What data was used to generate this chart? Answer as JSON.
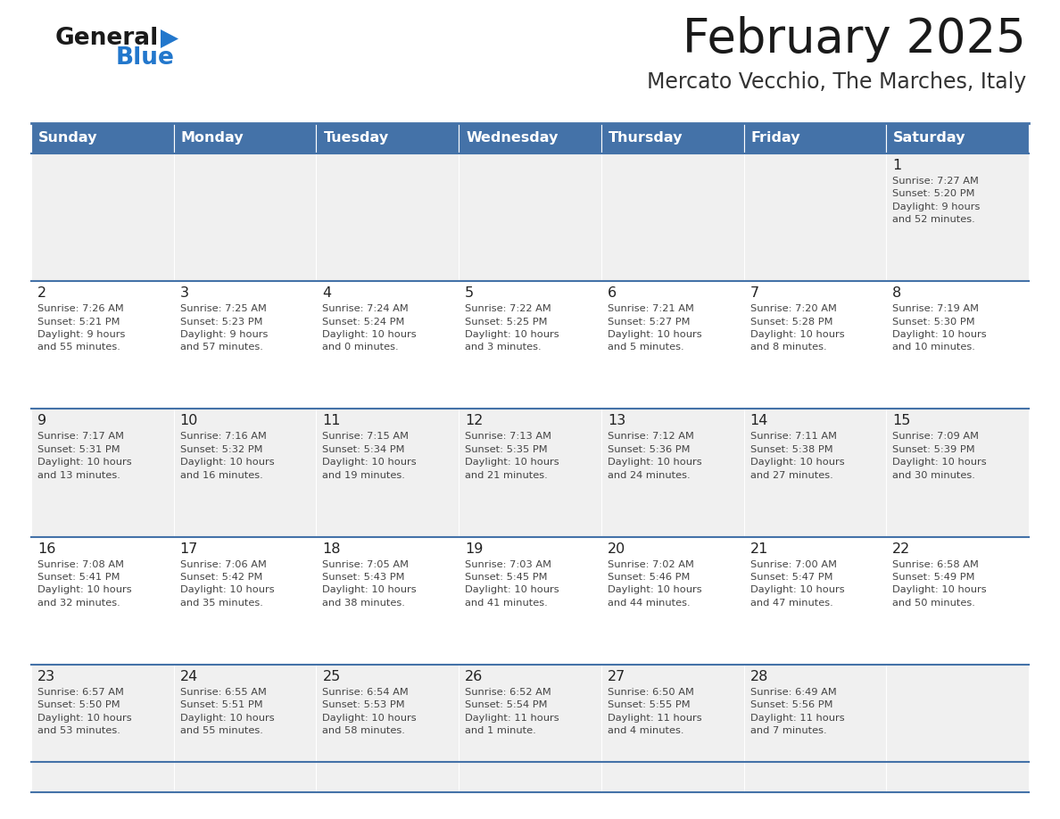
{
  "title": "February 2025",
  "subtitle": "Mercato Vecchio, The Marches, Italy",
  "days_of_week": [
    "Sunday",
    "Monday",
    "Tuesday",
    "Wednesday",
    "Thursday",
    "Friday",
    "Saturday"
  ],
  "header_bg": "#4472a8",
  "header_text": "#ffffff",
  "row_bg_odd": "#f0f0f0",
  "row_bg_even": "#ffffff",
  "cell_text_color": "#444444",
  "day_num_color": "#222222",
  "border_color": "#4472a8",
  "title_color": "#1a1a1a",
  "subtitle_color": "#333333",
  "logo_general_color": "#1a1a1a",
  "logo_blue_color": "#2277cc",
  "weeks": [
    [
      {
        "day": null,
        "info": null
      },
      {
        "day": null,
        "info": null
      },
      {
        "day": null,
        "info": null
      },
      {
        "day": null,
        "info": null
      },
      {
        "day": null,
        "info": null
      },
      {
        "day": null,
        "info": null
      },
      {
        "day": 1,
        "info": "Sunrise: 7:27 AM\nSunset: 5:20 PM\nDaylight: 9 hours\nand 52 minutes."
      }
    ],
    [
      {
        "day": 2,
        "info": "Sunrise: 7:26 AM\nSunset: 5:21 PM\nDaylight: 9 hours\nand 55 minutes."
      },
      {
        "day": 3,
        "info": "Sunrise: 7:25 AM\nSunset: 5:23 PM\nDaylight: 9 hours\nand 57 minutes."
      },
      {
        "day": 4,
        "info": "Sunrise: 7:24 AM\nSunset: 5:24 PM\nDaylight: 10 hours\nand 0 minutes."
      },
      {
        "day": 5,
        "info": "Sunrise: 7:22 AM\nSunset: 5:25 PM\nDaylight: 10 hours\nand 3 minutes."
      },
      {
        "day": 6,
        "info": "Sunrise: 7:21 AM\nSunset: 5:27 PM\nDaylight: 10 hours\nand 5 minutes."
      },
      {
        "day": 7,
        "info": "Sunrise: 7:20 AM\nSunset: 5:28 PM\nDaylight: 10 hours\nand 8 minutes."
      },
      {
        "day": 8,
        "info": "Sunrise: 7:19 AM\nSunset: 5:30 PM\nDaylight: 10 hours\nand 10 minutes."
      }
    ],
    [
      {
        "day": 9,
        "info": "Sunrise: 7:17 AM\nSunset: 5:31 PM\nDaylight: 10 hours\nand 13 minutes."
      },
      {
        "day": 10,
        "info": "Sunrise: 7:16 AM\nSunset: 5:32 PM\nDaylight: 10 hours\nand 16 minutes."
      },
      {
        "day": 11,
        "info": "Sunrise: 7:15 AM\nSunset: 5:34 PM\nDaylight: 10 hours\nand 19 minutes."
      },
      {
        "day": 12,
        "info": "Sunrise: 7:13 AM\nSunset: 5:35 PM\nDaylight: 10 hours\nand 21 minutes."
      },
      {
        "day": 13,
        "info": "Sunrise: 7:12 AM\nSunset: 5:36 PM\nDaylight: 10 hours\nand 24 minutes."
      },
      {
        "day": 14,
        "info": "Sunrise: 7:11 AM\nSunset: 5:38 PM\nDaylight: 10 hours\nand 27 minutes."
      },
      {
        "day": 15,
        "info": "Sunrise: 7:09 AM\nSunset: 5:39 PM\nDaylight: 10 hours\nand 30 minutes."
      }
    ],
    [
      {
        "day": 16,
        "info": "Sunrise: 7:08 AM\nSunset: 5:41 PM\nDaylight: 10 hours\nand 32 minutes."
      },
      {
        "day": 17,
        "info": "Sunrise: 7:06 AM\nSunset: 5:42 PM\nDaylight: 10 hours\nand 35 minutes."
      },
      {
        "day": 18,
        "info": "Sunrise: 7:05 AM\nSunset: 5:43 PM\nDaylight: 10 hours\nand 38 minutes."
      },
      {
        "day": 19,
        "info": "Sunrise: 7:03 AM\nSunset: 5:45 PM\nDaylight: 10 hours\nand 41 minutes."
      },
      {
        "day": 20,
        "info": "Sunrise: 7:02 AM\nSunset: 5:46 PM\nDaylight: 10 hours\nand 44 minutes."
      },
      {
        "day": 21,
        "info": "Sunrise: 7:00 AM\nSunset: 5:47 PM\nDaylight: 10 hours\nand 47 minutes."
      },
      {
        "day": 22,
        "info": "Sunrise: 6:58 AM\nSunset: 5:49 PM\nDaylight: 10 hours\nand 50 minutes."
      }
    ],
    [
      {
        "day": 23,
        "info": "Sunrise: 6:57 AM\nSunset: 5:50 PM\nDaylight: 10 hours\nand 53 minutes."
      },
      {
        "day": 24,
        "info": "Sunrise: 6:55 AM\nSunset: 5:51 PM\nDaylight: 10 hours\nand 55 minutes."
      },
      {
        "day": 25,
        "info": "Sunrise: 6:54 AM\nSunset: 5:53 PM\nDaylight: 10 hours\nand 58 minutes."
      },
      {
        "day": 26,
        "info": "Sunrise: 6:52 AM\nSunset: 5:54 PM\nDaylight: 11 hours\nand 1 minute."
      },
      {
        "day": 27,
        "info": "Sunrise: 6:50 AM\nSunset: 5:55 PM\nDaylight: 11 hours\nand 4 minutes."
      },
      {
        "day": 28,
        "info": "Sunrise: 6:49 AM\nSunset: 5:56 PM\nDaylight: 11 hours\nand 7 minutes."
      },
      {
        "day": null,
        "info": null
      }
    ]
  ]
}
